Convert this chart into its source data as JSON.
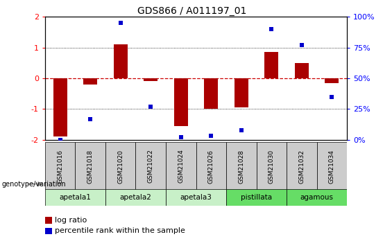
{
  "title": "GDS866 / A011197_01",
  "samples": [
    "GSM21016",
    "GSM21018",
    "GSM21020",
    "GSM21022",
    "GSM21024",
    "GSM21026",
    "GSM21028",
    "GSM21030",
    "GSM21032",
    "GSM21034"
  ],
  "log_ratio": [
    -1.9,
    -0.2,
    1.1,
    -0.1,
    -1.55,
    -1.0,
    -0.95,
    0.85,
    0.5,
    -0.15
  ],
  "percentile_rank": [
    0,
    17,
    95,
    27,
    2,
    3,
    8,
    90,
    77,
    35
  ],
  "groups": [
    {
      "name": "apetala1",
      "indices": [
        0,
        1
      ],
      "color": "#c8f0c8"
    },
    {
      "name": "apetala2",
      "indices": [
        2,
        3
      ],
      "color": "#c8f0c8"
    },
    {
      "name": "apetala3",
      "indices": [
        4,
        5
      ],
      "color": "#c8f0c8"
    },
    {
      "name": "pistillata",
      "indices": [
        6,
        7
      ],
      "color": "#66dd66"
    },
    {
      "name": "agamous",
      "indices": [
        8,
        9
      ],
      "color": "#66dd66"
    }
  ],
  "ylim": [
    -2,
    2
  ],
  "ylim_right": [
    0,
    100
  ],
  "bar_color": "#aa0000",
  "dot_color": "#0000cc",
  "hline_color": "#cc0000",
  "grid_color": "#000000",
  "sample_box_color": "#cccccc",
  "background_color": "#ffffff"
}
